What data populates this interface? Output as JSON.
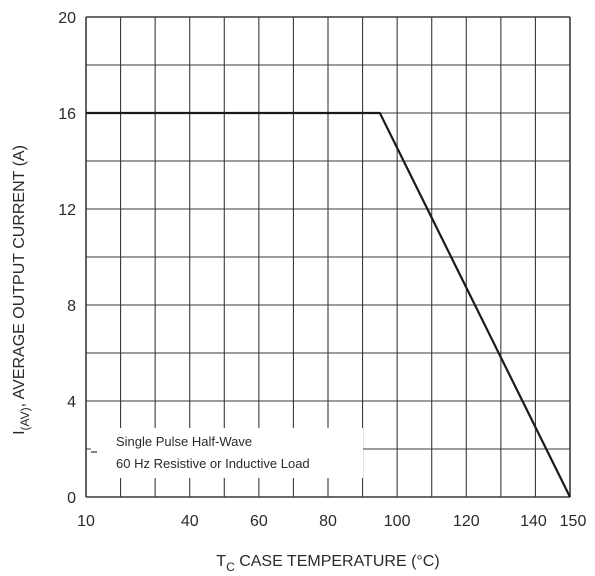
{
  "chart_data": {
    "type": "line",
    "xlabel": {
      "main": "T",
      "sub": "C",
      "rest": " CASE TEMPERATURE (°C)"
    },
    "ylabel": {
      "main": "I",
      "sub": "(AV)",
      "rest": ", AVERAGE OUTPUT CURRENT (A)"
    },
    "xlim": [
      10,
      150
    ],
    "ylim": [
      0,
      20
    ],
    "x_ticks": [
      10,
      40,
      60,
      80,
      100,
      120,
      140,
      150
    ],
    "x_tick_labels": [
      "10",
      "40",
      "60",
      "80",
      "100",
      "120",
      "140",
      "150"
    ],
    "y_ticks": [
      0,
      4,
      8,
      12,
      16,
      20
    ],
    "y_tick_labels": [
      "0",
      "4",
      "8",
      "12",
      "16",
      "20"
    ],
    "x_grid_step": 10,
    "y_grid_step": 2,
    "grid": true,
    "series": [
      {
        "x": [
          10,
          95,
          150
        ],
        "y": [
          16,
          16,
          0
        ]
      }
    ],
    "annotation": {
      "lines": [
        "Single Pulse Half-Wave",
        "60 Hz Resistive or Inductive Load"
      ]
    }
  }
}
